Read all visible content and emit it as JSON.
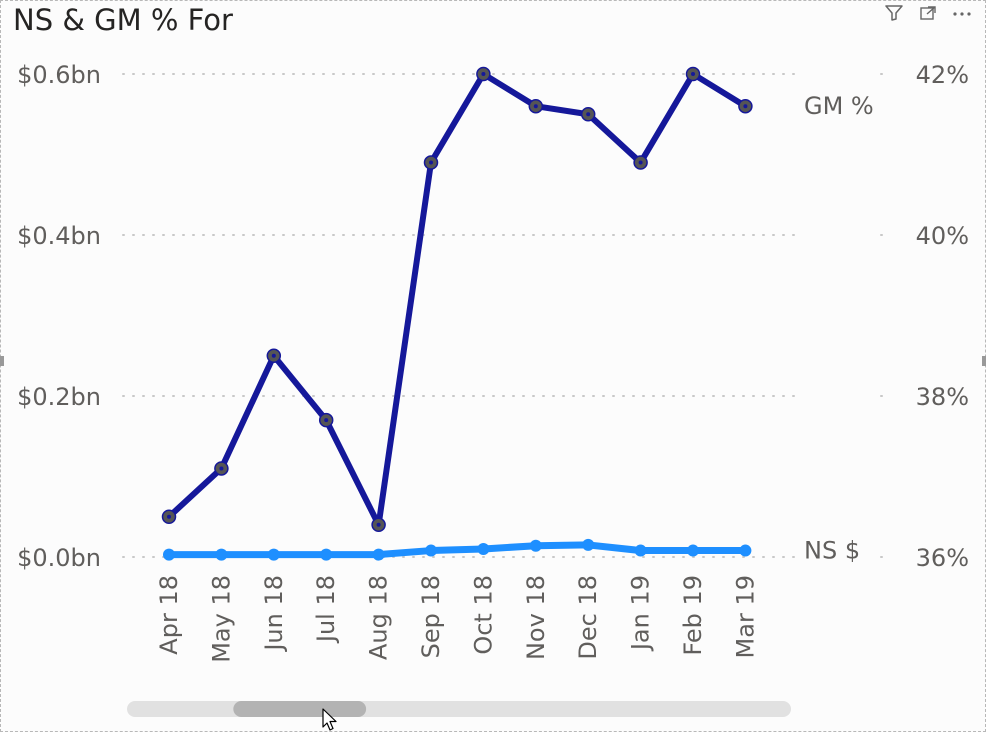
{
  "visual": {
    "title": "NS & GM % For",
    "toolbar": [
      {
        "name": "filter-icon",
        "glyph": "filter"
      },
      {
        "name": "focus-mode-icon",
        "glyph": "expand"
      },
      {
        "name": "more-options-icon",
        "glyph": "more"
      }
    ]
  },
  "chart_data": {
    "type": "line",
    "categories": [
      "Apr 18",
      "May 18",
      "Jun 18",
      "Jul 18",
      "Aug 18",
      "Sep 18",
      "Oct 18",
      "Nov 18",
      "Dec 18",
      "Jan 19",
      "Feb 19",
      "Mar 19"
    ],
    "y_left": {
      "ticks": [
        "$0.0bn",
        "$0.2bn",
        "$0.4bn",
        "$0.6bn"
      ],
      "tick_values": [
        0.0,
        0.2,
        0.4,
        0.6
      ],
      "range": [
        0.0,
        0.6
      ],
      "unit": "$bn"
    },
    "y_right": {
      "ticks": [
        "36%",
        "38%",
        "40%",
        "42%"
      ],
      "tick_values": [
        36,
        38,
        40,
        42
      ],
      "range": [
        36,
        42
      ],
      "unit": "%"
    },
    "grid": true,
    "series": [
      {
        "name": "GM %",
        "axis": "right",
        "color": "#15189a",
        "marker_color": "#555555",
        "values": [
          36.5,
          37.1,
          38.5,
          37.7,
          36.4,
          40.9,
          42.0,
          41.6,
          41.5,
          40.9,
          42.0,
          41.6
        ]
      },
      {
        "name": "NS $",
        "axis": "left",
        "color": "#1e8fff",
        "marker_color": "#1e8fff",
        "values": [
          0.003,
          0.003,
          0.003,
          0.003,
          0.003,
          0.008,
          0.01,
          0.014,
          0.015,
          0.008,
          0.008,
          0.008
        ]
      }
    ]
  },
  "scrollbar": {
    "position": 0.13,
    "visible_fraction": 0.2
  }
}
